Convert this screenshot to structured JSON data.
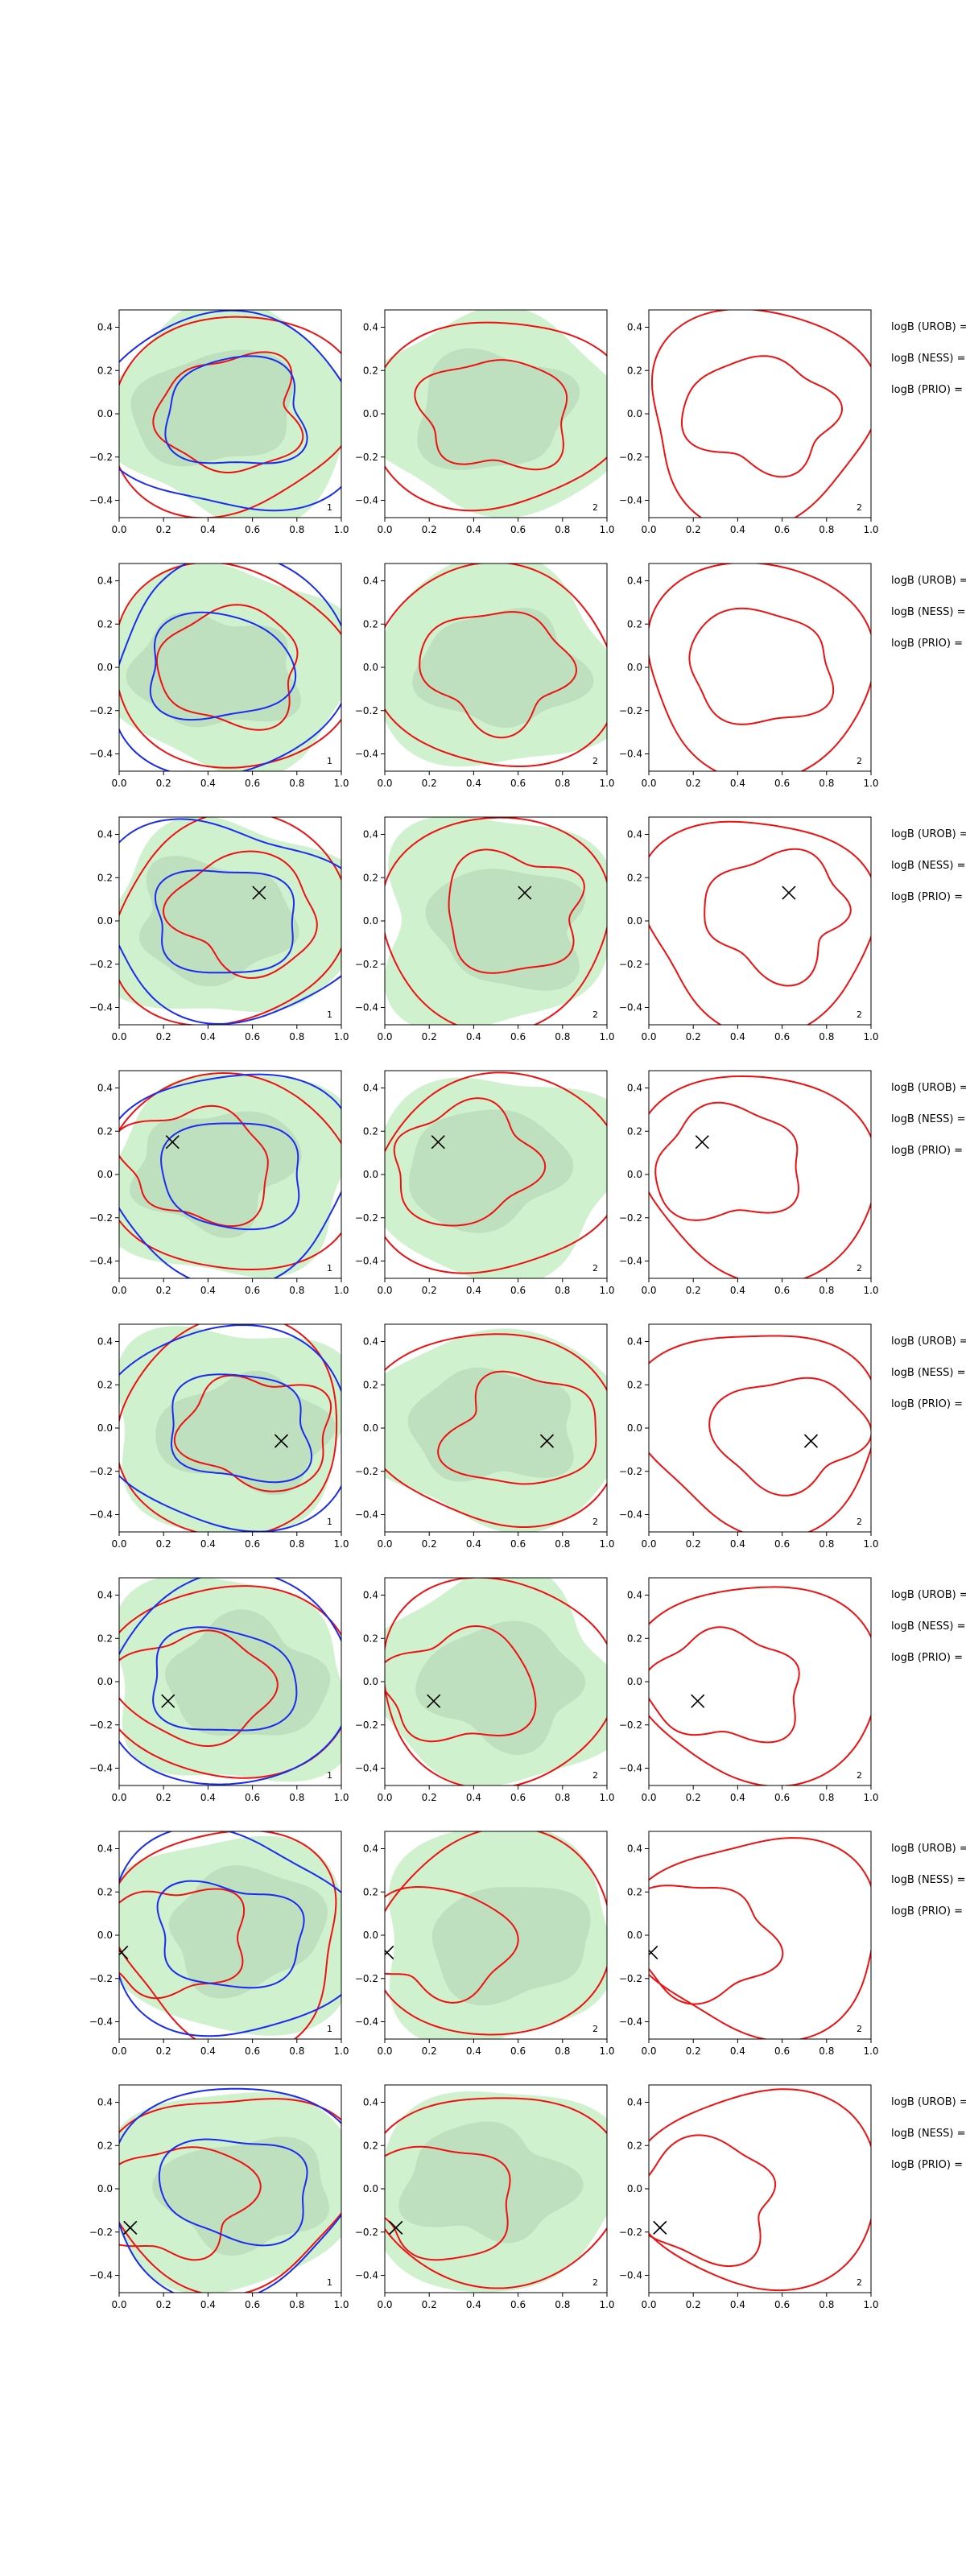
{
  "figure": {
    "bayes_labels": [
      "logB (UROB) =",
      "logB (NESS) =",
      "logB (PRIO) ="
    ],
    "panel_numbers": [
      "1",
      "2",
      "2"
    ]
  },
  "colors": {
    "fill_light": "#c8efc6",
    "fill_dark": "#b9d9b8",
    "contour_red": "#ee1111",
    "contour_blue": "#1a2cf0",
    "marker": "#000000"
  },
  "chart_data": [
    {
      "type": "contour",
      "row": 1,
      "xlim": [
        0,
        1
      ],
      "ylim": [
        -0.48,
        0.48
      ],
      "xticks": [
        "0.0",
        "0.2",
        "0.4",
        "0.6",
        "0.8",
        "1.0"
      ],
      "yticks": [
        "0.4",
        "0.2",
        "0.0",
        "−0.2",
        "−0.4"
      ],
      "marker": null
    },
    {
      "type": "contour",
      "row": 2,
      "xlim": [
        0,
        1
      ],
      "ylim": [
        -0.48,
        0.48
      ],
      "xticks": [
        "0.0",
        "0.2",
        "0.4",
        "0.6",
        "0.8",
        "1.0"
      ],
      "yticks": [
        "0.4",
        "0.2",
        "0.0",
        "−0.2",
        "−0.4"
      ],
      "marker": null
    },
    {
      "type": "contour",
      "row": 3,
      "xlim": [
        0,
        1
      ],
      "ylim": [
        -0.48,
        0.48
      ],
      "xticks": [
        "0.0",
        "0.2",
        "0.4",
        "0.6",
        "0.8",
        "1.0"
      ],
      "yticks": [
        "0.4",
        "0.2",
        "0.0",
        "−0.2",
        "−0.4"
      ],
      "marker": {
        "x": 0.63,
        "y": 0.13
      }
    },
    {
      "type": "contour",
      "row": 4,
      "xlim": [
        0,
        1
      ],
      "ylim": [
        -0.48,
        0.48
      ],
      "xticks": [
        "0.0",
        "0.2",
        "0.4",
        "0.6",
        "0.8",
        "1.0"
      ],
      "yticks": [
        "0.4",
        "0.2",
        "0.0",
        "−0.2",
        "−0.4"
      ],
      "marker": {
        "x": 0.24,
        "y": 0.15
      }
    },
    {
      "type": "contour",
      "row": 5,
      "xlim": [
        0,
        1
      ],
      "ylim": [
        -0.48,
        0.48
      ],
      "xticks": [
        "0.0",
        "0.2",
        "0.4",
        "0.6",
        "0.8",
        "1.0"
      ],
      "yticks": [
        "0.4",
        "0.2",
        "0.0",
        "−0.2",
        "−0.4"
      ],
      "marker": {
        "x": 0.73,
        "y": -0.06
      }
    },
    {
      "type": "contour",
      "row": 6,
      "xlim": [
        0,
        1
      ],
      "ylim": [
        -0.48,
        0.48
      ],
      "xticks": [
        "0.0",
        "0.2",
        "0.4",
        "0.6",
        "0.8",
        "1.0"
      ],
      "yticks": [
        "0.4",
        "0.2",
        "0.0",
        "−0.2",
        "−0.4"
      ],
      "marker": {
        "x": 0.22,
        "y": -0.09
      }
    },
    {
      "type": "contour",
      "row": 7,
      "xlim": [
        0,
        1
      ],
      "ylim": [
        -0.48,
        0.48
      ],
      "xticks": [
        "0.0",
        "0.2",
        "0.4",
        "0.6",
        "0.8",
        "1.0"
      ],
      "yticks": [
        "0.4",
        "0.2",
        "0.0",
        "−0.2",
        "−0.4"
      ],
      "marker": {
        "x": 0.01,
        "y": -0.08
      }
    },
    {
      "type": "contour",
      "row": 8,
      "xlim": [
        0,
        1
      ],
      "ylim": [
        -0.48,
        0.48
      ],
      "xticks": [
        "0.0",
        "0.2",
        "0.4",
        "0.6",
        "0.8",
        "1.0"
      ],
      "yticks": [
        "0.4",
        "0.2",
        "0.0",
        "−0.2",
        "−0.4"
      ],
      "marker": {
        "x": 0.05,
        "y": -0.18
      }
    }
  ]
}
